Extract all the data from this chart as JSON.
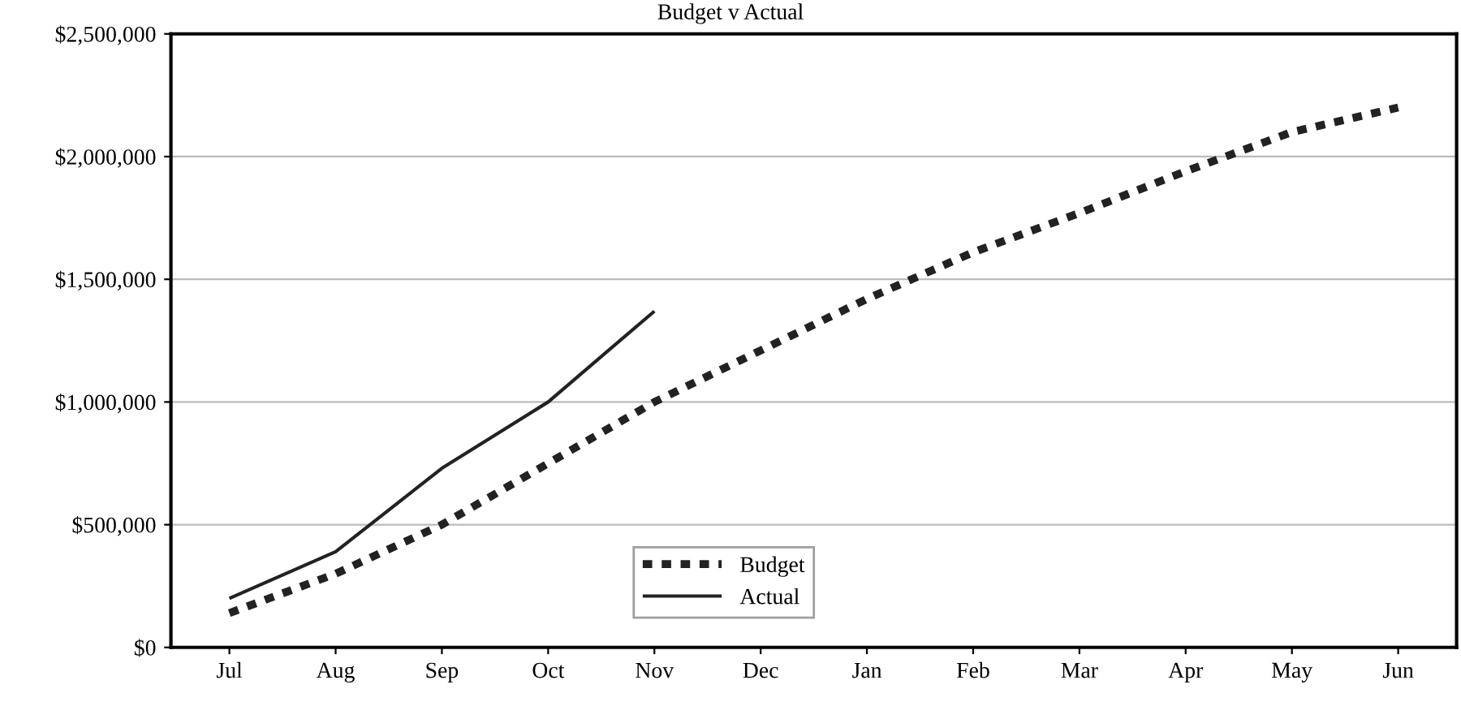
{
  "chart_data": {
    "type": "line",
    "title": "Budget v Actual",
    "categories": [
      "Jul",
      "Aug",
      "Sep",
      "Oct",
      "Nov",
      "Dec",
      "Jan",
      "Feb",
      "Mar",
      "Apr",
      "May",
      "Jun"
    ],
    "series": [
      {
        "name": "Budget",
        "color": "#222222",
        "line_style": "dashed",
        "values": [
          140000,
          300000,
          500000,
          750000,
          1000000,
          1210000,
          1420000,
          1610000,
          1770000,
          1940000,
          2100000,
          2200000
        ]
      },
      {
        "name": "Actual",
        "color": "#222222",
        "line_style": "solid",
        "values": [
          200000,
          390000,
          730000,
          1000000,
          1370000,
          null,
          null,
          null,
          null,
          null,
          null,
          null
        ]
      }
    ],
    "ylim": [
      0,
      2500000
    ],
    "yticks": [
      {
        "value": 0,
        "label": "$0"
      },
      {
        "value": 500000,
        "label": "$500,000"
      },
      {
        "value": 1000000,
        "label": "$1,000,000"
      },
      {
        "value": 1500000,
        "label": "$1,500,000"
      },
      {
        "value": 2000000,
        "label": "$2,000,000"
      },
      {
        "value": 2500000,
        "label": "$2,500,000"
      }
    ],
    "grid": "y",
    "legend": "bottom"
  }
}
